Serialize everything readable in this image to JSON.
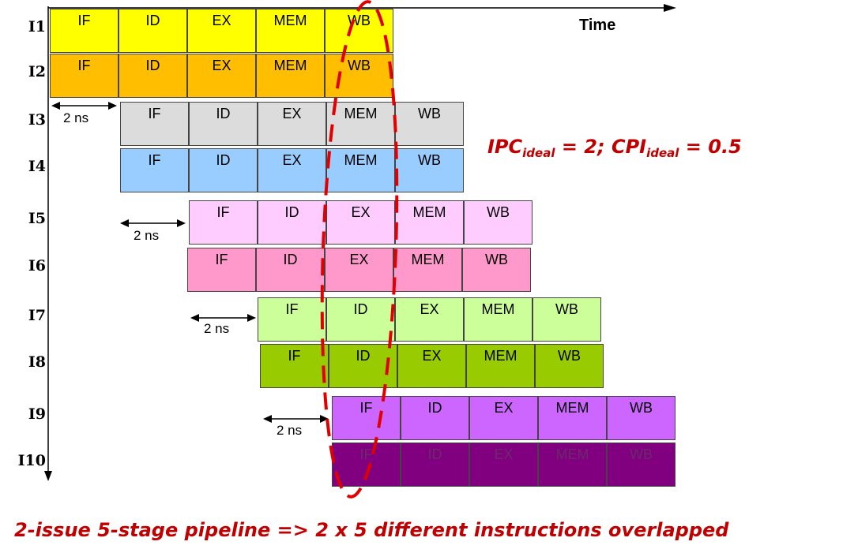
{
  "time_label": "Time",
  "latency_label": "2 ns",
  "formula": {
    "ipc": "IPC",
    "ipc_sub": "ideal",
    "ipc_rest": " = 2; ",
    "cpi": "CPI",
    "cpi_sub": "ideal",
    "cpi_rest": " = 0.5"
  },
  "caption": "2-issue 5-stage pipeline => 2 x 5 different instructions overlapped",
  "stages": [
    "IF",
    "ID",
    "EX",
    "MEM",
    "WB"
  ],
  "instructions": [
    {
      "label": "I1",
      "color": "#ffff00",
      "text_color": "#000000"
    },
    {
      "label": "I2",
      "color": "#ffbf00",
      "text_color": "#000000"
    },
    {
      "label": "I3",
      "color": "#dcdcdc",
      "text_color": "#000000"
    },
    {
      "label": "I4",
      "color": "#99ccff",
      "text_color": "#000000"
    },
    {
      "label": "I5",
      "color": "#ffccff",
      "text_color": "#000000"
    },
    {
      "label": "I6",
      "color": "#ff99cc",
      "text_color": "#000000"
    },
    {
      "label": "I7",
      "color": "#ccff99",
      "text_color": "#000000"
    },
    {
      "label": "I8",
      "color": "#99cc00",
      "text_color": "#000000"
    },
    {
      "label": "I9",
      "color": "#cc66ff",
      "text_color": "#000000"
    },
    {
      "label": "I10",
      "color": "#800080",
      "text_color": "#6a2a6a"
    }
  ],
  "colors": {
    "highlight": "#e00000",
    "caption": "#c00000"
  }
}
